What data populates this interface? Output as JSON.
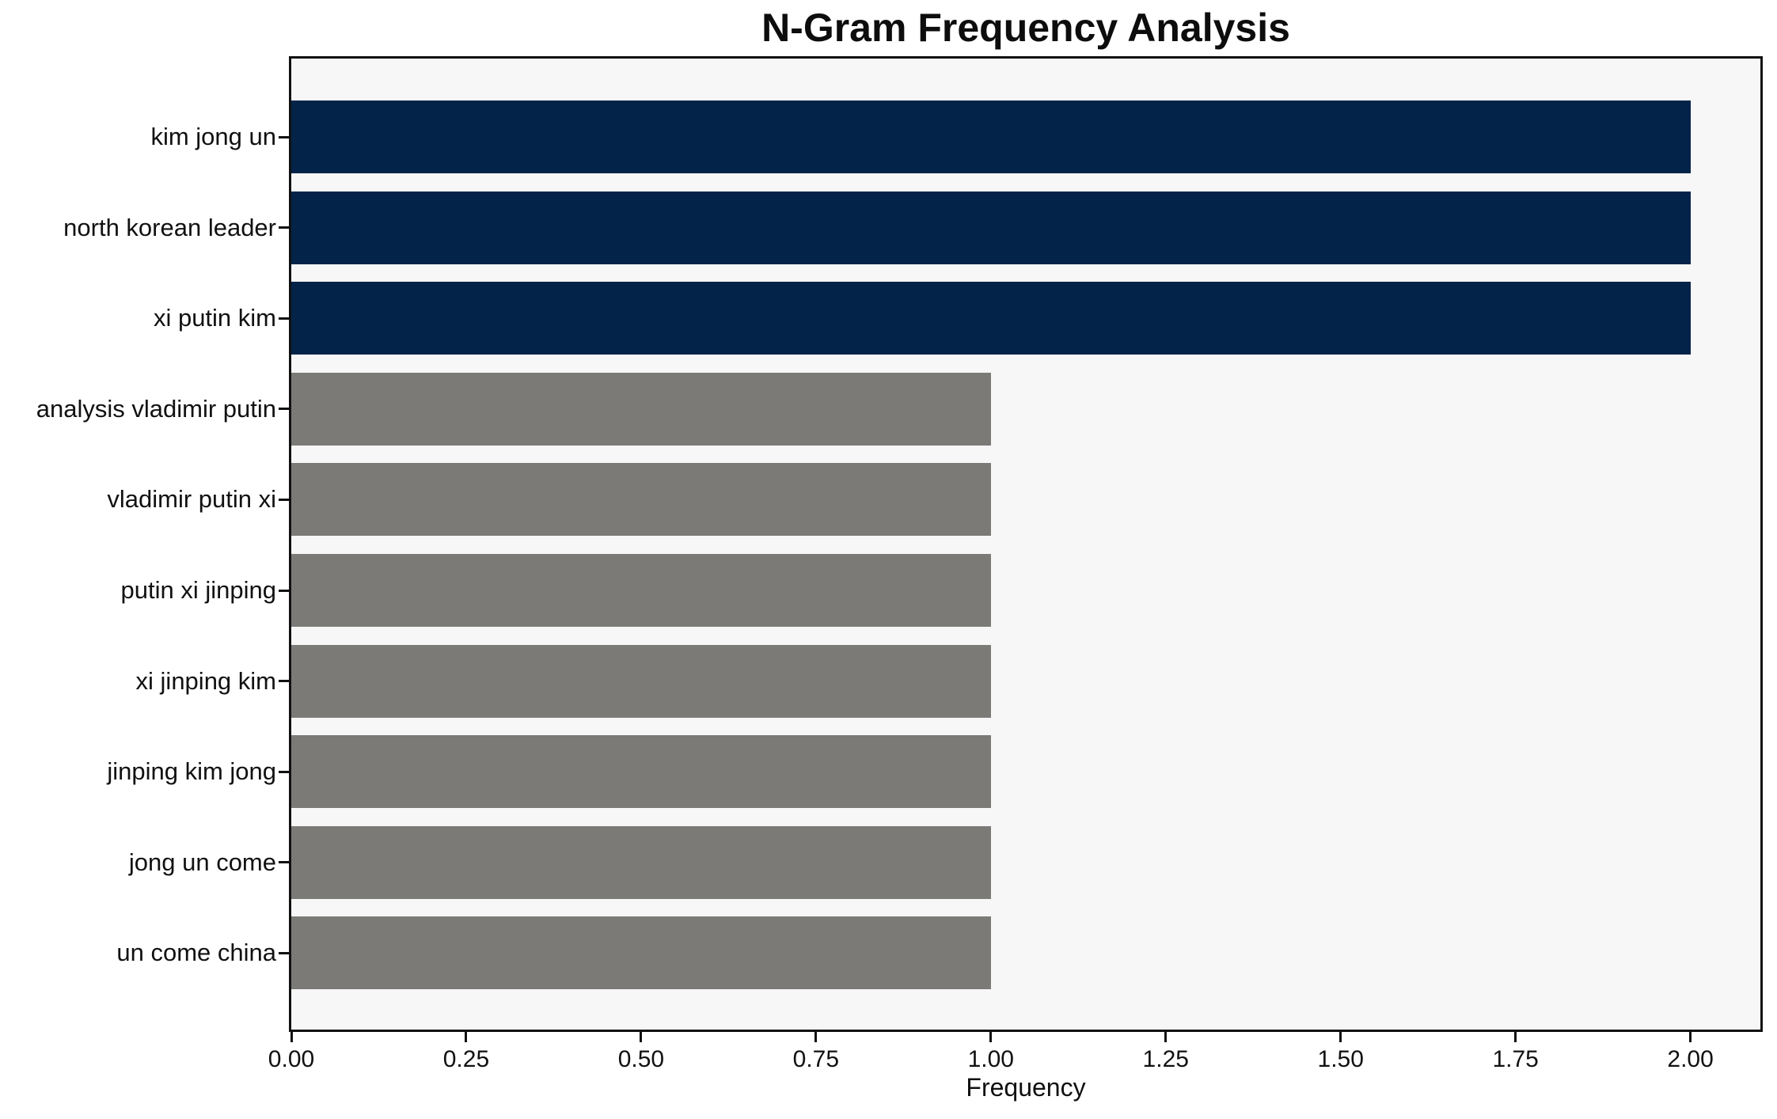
{
  "chart_data": {
    "type": "bar",
    "orientation": "horizontal",
    "title": "N-Gram Frequency Analysis",
    "xlabel": "Frequency",
    "ylabel": "",
    "categories": [
      "kim jong un",
      "north korean leader",
      "xi putin kim",
      "analysis vladimir putin",
      "vladimir putin xi",
      "putin xi jinping",
      "xi jinping kim",
      "jinping kim jong",
      "jong un come",
      "un come china"
    ],
    "values": [
      2,
      2,
      2,
      1,
      1,
      1,
      1,
      1,
      1,
      1
    ],
    "bar_colors": [
      "#032349",
      "#032349",
      "#032349",
      "#7b7a77",
      "#7b7a77",
      "#7b7a77",
      "#7b7a77",
      "#7b7a77",
      "#7b7a77",
      "#7b7a77"
    ],
    "xlim": [
      0,
      2.1
    ],
    "xticks": [
      "0.00",
      "0.25",
      "0.50",
      "0.75",
      "1.00",
      "1.25",
      "1.50",
      "1.75",
      "2.00"
    ],
    "xtick_values": [
      0,
      0.25,
      0.5,
      0.75,
      1.0,
      1.25,
      1.5,
      1.75,
      2.0
    ],
    "grid": "off",
    "legend": "none",
    "colors": {
      "highlight_navy": "#032349",
      "default_gray": "#7b7a77",
      "plot_background": "#f7f7f7",
      "figure_background": "#ffffff",
      "spine": "#111111",
      "text": "#111111"
    }
  }
}
